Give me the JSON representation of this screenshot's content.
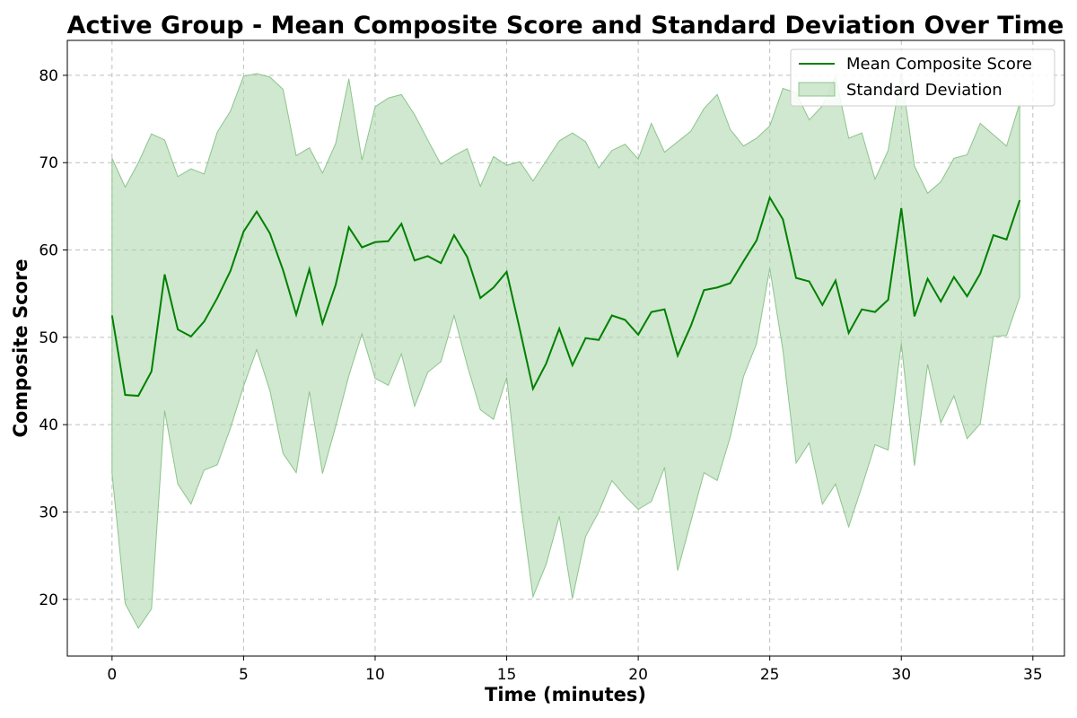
{
  "chart_data": {
    "type": "line",
    "title": "Active Group - Mean Composite Score and Standard Deviation Over Time",
    "xlabel": "Time (minutes)",
    "ylabel": "Composite Score",
    "xlim": [
      -1.7,
      36.2
    ],
    "ylim": [
      13.5,
      84.0
    ],
    "x_ticks": [
      0,
      5,
      10,
      15,
      20,
      25,
      30,
      35
    ],
    "y_ticks": [
      20,
      30,
      40,
      50,
      60,
      70,
      80
    ],
    "grid": true,
    "legend_position": "top-right",
    "colors": {
      "line": "#008000",
      "band": "#a8d5a8",
      "band_edge": "#8cc48c"
    },
    "x": [
      0,
      0.5,
      1,
      1.5,
      2,
      2.5,
      3,
      3.5,
      4,
      4.5,
      5,
      5.5,
      6,
      6.5,
      7,
      7.5,
      8,
      8.5,
      9,
      9.5,
      10,
      10.5,
      11,
      11.5,
      12,
      12.5,
      13,
      13.5,
      14,
      14.5,
      15,
      15.5,
      16,
      16.5,
      17,
      17.5,
      18,
      18.5,
      19,
      19.5,
      20,
      20.5,
      21,
      21.5,
      22,
      22.5,
      23,
      23.5,
      24,
      24.5,
      25,
      25.5,
      26,
      26.5,
      27,
      27.5,
      28,
      28.5,
      29,
      29.5,
      30,
      30.5,
      31,
      31.5,
      32,
      32.5,
      33,
      33.5,
      34,
      34.5
    ],
    "series": [
      {
        "name": "Mean Composite Score",
        "values": [
          52.5,
          43.4,
          43.3,
          46.1,
          57.2,
          50.9,
          50.1,
          51.8,
          54.5,
          57.6,
          62.1,
          64.4,
          61.9,
          57.7,
          52.6,
          57.8,
          51.6,
          56.0,
          62.6,
          60.3,
          60.9,
          61.0,
          63.0,
          58.8,
          59.3,
          58.5,
          61.7,
          59.2,
          54.5,
          55.7,
          57.5,
          50.9,
          44.1,
          47.0,
          51.0,
          46.8,
          49.9,
          49.7,
          52.5,
          52.0,
          50.3,
          52.9,
          53.2,
          47.9,
          51.3,
          55.4,
          55.7,
          56.2,
          58.7,
          61.1,
          66.0,
          63.5,
          56.8,
          56.4,
          53.7,
          56.5,
          50.5,
          53.2,
          52.9,
          54.3,
          64.8,
          52.4,
          56.7,
          54.1,
          56.9,
          54.7,
          57.3,
          61.7,
          61.2,
          65.7
        ]
      },
      {
        "name": "Standard Deviation",
        "upper": [
          70.5,
          67.2,
          70.0,
          73.3,
          72.6,
          68.4,
          69.3,
          68.7,
          73.5,
          75.9,
          79.9,
          80.2,
          79.8,
          78.4,
          70.8,
          71.7,
          68.8,
          72.2,
          79.6,
          70.3,
          76.4,
          77.4,
          77.8,
          75.5,
          72.6,
          69.8,
          70.8,
          71.6,
          67.3,
          70.7,
          69.7,
          70.1,
          67.9,
          70.2,
          72.5,
          73.4,
          72.4,
          69.4,
          71.4,
          72.1,
          70.4,
          74.5,
          71.2,
          72.4,
          73.6,
          76.2,
          77.8,
          73.8,
          71.9,
          72.8,
          74.2,
          78.5,
          78.0,
          74.9,
          76.5,
          79.8,
          72.8,
          73.4,
          68.1,
          71.4,
          80.3,
          69.6,
          66.5,
          67.8,
          70.5,
          70.9,
          74.5,
          73.2,
          71.9,
          76.8
        ],
        "lower": [
          34.4,
          19.5,
          16.7,
          18.9,
          41.6,
          33.2,
          30.9,
          34.8,
          35.4,
          39.6,
          44.4,
          48.6,
          43.9,
          36.7,
          34.5,
          43.8,
          34.4,
          39.8,
          45.6,
          50.4,
          45.3,
          44.5,
          48.1,
          42.1,
          46.0,
          47.2,
          52.5,
          46.8,
          41.7,
          40.6,
          45.4,
          31.7,
          20.3,
          24.0,
          29.5,
          20.1,
          27.2,
          30.0,
          33.6,
          31.8,
          30.3,
          31.2,
          35.1,
          23.3,
          28.9,
          34.5,
          33.6,
          38.6,
          45.5,
          49.3,
          57.9,
          48.5,
          35.6,
          37.9,
          30.9,
          33.2,
          28.3,
          32.9,
          37.7,
          37.1,
          49.3,
          35.3,
          46.9,
          40.2,
          43.3,
          38.4,
          40.1,
          50.1,
          50.2,
          54.6
        ]
      }
    ]
  }
}
